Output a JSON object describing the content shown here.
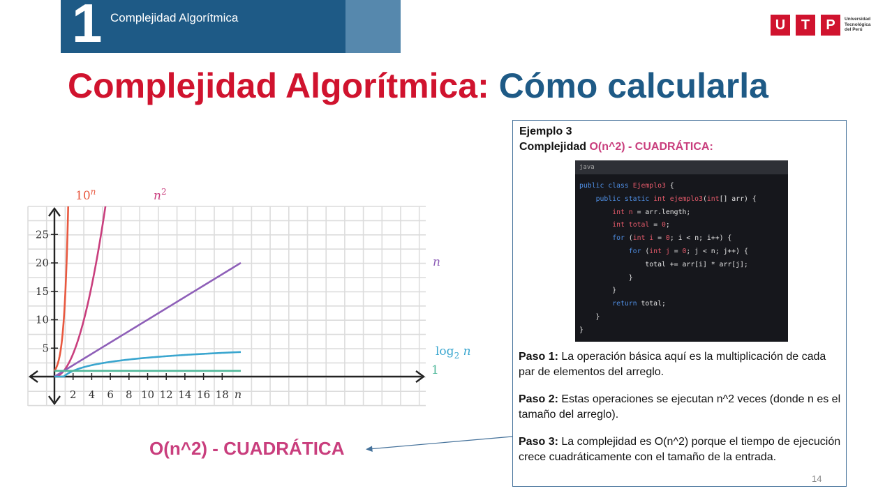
{
  "header": {
    "number": "1",
    "section": "Complejidad Algorítmica"
  },
  "logo": {
    "letters": [
      "U",
      "T",
      "P"
    ],
    "subtitle": "Universidad\nTecnológica\ndel Perú"
  },
  "title": {
    "part1": "Complejidad Algorítmica:",
    "part2": "Cómo calcularla"
  },
  "chart_data": {
    "type": "line",
    "xlabel": "n",
    "x_ticks": [
      "2",
      "4",
      "6",
      "8",
      "10",
      "12",
      "14",
      "16",
      "18"
    ],
    "y_ticks": [
      "5",
      "10",
      "15",
      "20",
      "25"
    ],
    "xlim": [
      -1.3,
      20
    ],
    "ylim": [
      -5,
      30
    ],
    "grid": true,
    "series": [
      {
        "name": "10^n",
        "label_text": "10",
        "label_sup": "n",
        "color": "#e8583f",
        "func": "exp10"
      },
      {
        "name": "n^2",
        "label_text": "n",
        "label_sup": "2",
        "color": "#c93e7d",
        "func": "square"
      },
      {
        "name": "n",
        "label_text": "n",
        "label_sup": "",
        "color": "#8e5fb8",
        "func": "linear"
      },
      {
        "name": "log2 n",
        "label_text": "log",
        "label_sub": "2",
        "label_after": " n",
        "color": "#3aa6cf",
        "func": "log2"
      },
      {
        "name": "1",
        "label_text": "1",
        "label_sup": "",
        "color": "#4fb89a",
        "func": "const"
      }
    ]
  },
  "big_label": "O(n^2) - CUADRÁTICA",
  "example": {
    "title": "Ejemplo 3",
    "subtitle_prefix": "Complejidad ",
    "subtitle_highlight": "O(n^2) - CUADRÁTICA:",
    "code_lang": "java",
    "code_lines": [
      [
        [
          "kw",
          "public"
        ],
        [
          "t",
          " "
        ],
        [
          "kw",
          "class"
        ],
        [
          "t",
          " "
        ],
        [
          "ty",
          "Ejemplo3"
        ],
        [
          "t",
          " {"
        ]
      ],
      [
        [
          "t",
          "    "
        ],
        [
          "kw",
          "public"
        ],
        [
          "t",
          " "
        ],
        [
          "kw",
          "static"
        ],
        [
          "t",
          " "
        ],
        [
          "ty",
          "int"
        ],
        [
          "t",
          " "
        ],
        [
          "ty",
          "ejemplo3"
        ],
        [
          "t",
          "("
        ],
        [
          "ty",
          "int"
        ],
        [
          "t",
          "[] arr) {"
        ]
      ],
      [
        [
          "t",
          "        "
        ],
        [
          "ty",
          "int"
        ],
        [
          "t",
          " "
        ],
        [
          "ty",
          "n"
        ],
        [
          "t",
          " = arr.length;"
        ]
      ],
      [
        [
          "t",
          "        "
        ],
        [
          "ty",
          "int"
        ],
        [
          "t",
          " "
        ],
        [
          "ty",
          "total"
        ],
        [
          "t",
          " = "
        ],
        [
          "num",
          "0"
        ],
        [
          "t",
          ";"
        ]
      ],
      [
        [
          "t",
          "        "
        ],
        [
          "kw",
          "for"
        ],
        [
          "t",
          " ("
        ],
        [
          "ty",
          "int"
        ],
        [
          "t",
          " "
        ],
        [
          "ty",
          "i"
        ],
        [
          "t",
          " = "
        ],
        [
          "num",
          "0"
        ],
        [
          "t",
          "; i < n; i++) {"
        ]
      ],
      [
        [
          "t",
          "            "
        ],
        [
          "kw",
          "for"
        ],
        [
          "t",
          " ("
        ],
        [
          "ty",
          "int"
        ],
        [
          "t",
          " "
        ],
        [
          "ty",
          "j"
        ],
        [
          "t",
          " = "
        ],
        [
          "num",
          "0"
        ],
        [
          "t",
          "; j < n; j++) {"
        ]
      ],
      [
        [
          "t",
          "                total += arr[i] * arr[j];"
        ]
      ],
      [
        [
          "t",
          "            }"
        ]
      ],
      [
        [
          "t",
          "        }"
        ]
      ],
      [
        [
          "t",
          "        "
        ],
        [
          "kw",
          "return"
        ],
        [
          "t",
          " total;"
        ]
      ],
      [
        [
          "t",
          "    }"
        ]
      ],
      [
        [
          "t",
          "}"
        ]
      ]
    ],
    "steps": [
      {
        "label": "Paso 1:",
        "text": " La operación básica aquí es la multiplicación de cada par de elementos del arreglo."
      },
      {
        "label": "Paso 2:",
        "text": " Estas operaciones se ejecutan n^2 veces (donde n es el tamaño del arreglo)."
      },
      {
        "label": "Paso 3:",
        "text": " La complejidad es O(n^2) porque el tiempo de ejecución crece cuadráticamente con el tamaño de la entrada."
      }
    ],
    "page_number": "14"
  }
}
